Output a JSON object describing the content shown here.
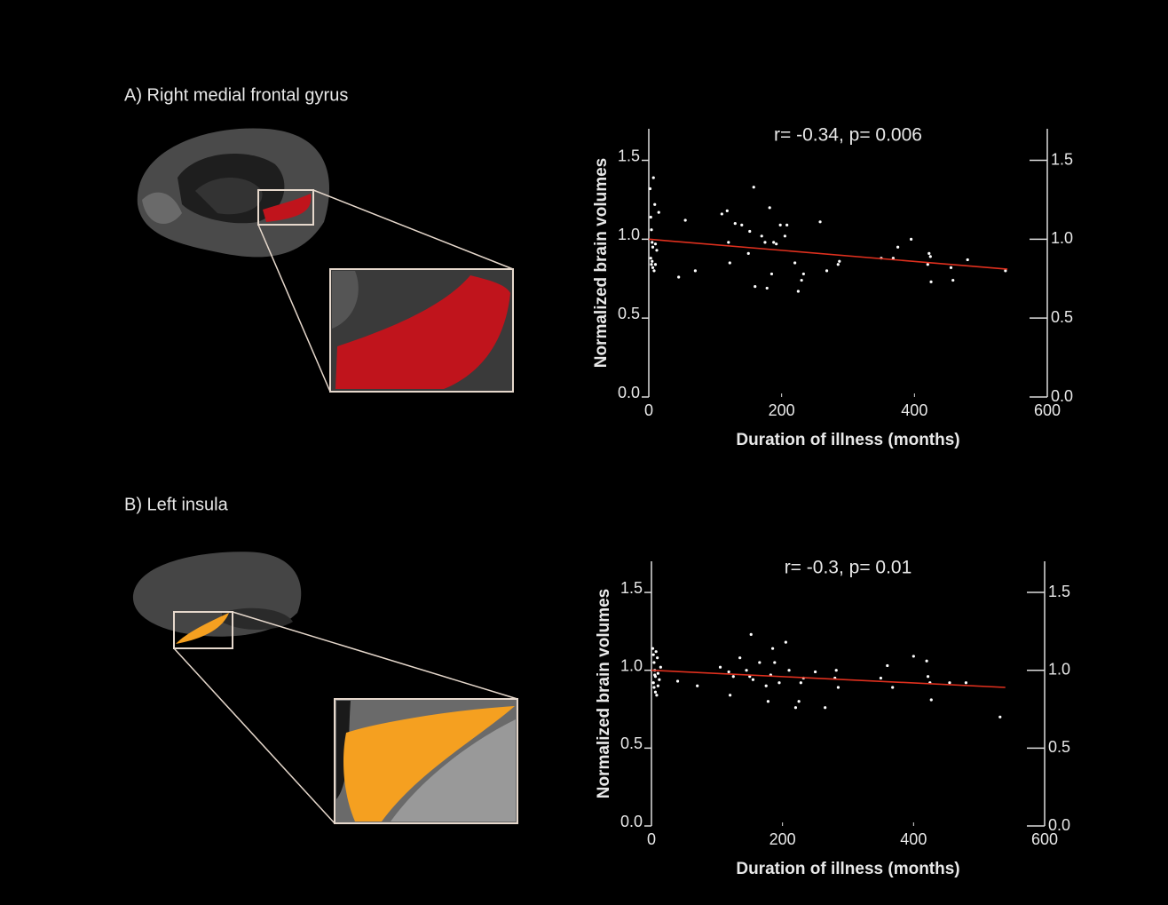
{
  "chart_data": [
    {
      "type": "scatter",
      "panel": "A) Right medial frontal gyrus",
      "title": "r= -0.34, p= 0.006",
      "x_label": "Duration of illness (months)",
      "y_label": "Normalized brain volumes",
      "xlim": [
        0,
        600
      ],
      "xticks": [
        0,
        200,
        400,
        600
      ],
      "ylim": [
        0,
        1.7
      ],
      "yticks": [
        {
          "value": 0,
          "label": "0.0"
        },
        0.5,
        {
          "value": 1,
          "label": "1.0"
        },
        1.5
      ],
      "series": [
        {
          "color": "#ffffff",
          "x": [
            2,
            3,
            4,
            5,
            6,
            3,
            4,
            6,
            8,
            7,
            9,
            10,
            12,
            15,
            5,
            10,
            45,
            55,
            70,
            110,
            118,
            120,
            122,
            130,
            140,
            150,
            152,
            158,
            160,
            170,
            175,
            178,
            182,
            185,
            188,
            192,
            198,
            205,
            208,
            220,
            225,
            230,
            233,
            258,
            268,
            285,
            287,
            350,
            368,
            375,
            395,
            420,
            422,
            424,
            425,
            455,
            458,
            480,
            537
          ],
          "values": [
            1.32,
            1.14,
            1.06,
            0.98,
            0.95,
            0.88,
            0.84,
            0.82,
            0.8,
            1.39,
            1.22,
            0.97,
            0.93,
            1.17,
            0.86,
            0.84,
            0.76,
            1.12,
            0.8,
            1.16,
            1.18,
            0.98,
            0.85,
            1.1,
            1.09,
            0.91,
            1.05,
            1.33,
            0.7,
            1.02,
            0.98,
            0.69,
            1.2,
            0.78,
            0.98,
            0.97,
            1.09,
            1.02,
            1.09,
            0.85,
            0.67,
            0.74,
            0.78,
            1.11,
            0.8,
            0.84,
            0.86,
            0.88,
            0.88,
            0.95,
            1.0,
            0.84,
            0.91,
            0.89,
            0.73,
            0.82,
            0.74,
            0.87,
            0.8
          ]
        }
      ],
      "fit": {
        "color": "#e0301e",
        "x": [
          0,
          540
        ],
        "y": [
          1.0,
          0.81
        ]
      }
    },
    {
      "type": "scatter",
      "panel": "B) Left insula",
      "title": "r= -0.3, p= 0.01",
      "x_label": "Duration of illness (months)",
      "y_label": "Normalized brain volumes",
      "xlim": [
        0,
        600
      ],
      "xticks": [
        0,
        200,
        400,
        600
      ],
      "ylim": [
        0,
        1.7
      ],
      "yticks": [
        {
          "value": 0,
          "label": "0.0"
        },
        0.5,
        {
          "value": 1,
          "label": "1.0"
        },
        1.5
      ],
      "series": [
        {
          "color": "#ffffff",
          "x": [
            2,
            3,
            4,
            5,
            6,
            3,
            4,
            6,
            8,
            7,
            9,
            10,
            12,
            14,
            5,
            10,
            40,
            70,
            105,
            118,
            120,
            125,
            135,
            145,
            150,
            152,
            155,
            165,
            175,
            178,
            182,
            185,
            188,
            195,
            205,
            210,
            220,
            225,
            228,
            232,
            250,
            265,
            280,
            282,
            285,
            350,
            360,
            368,
            400,
            420,
            422,
            425,
            427,
            455,
            480,
            532
          ],
          "values": [
            1.14,
            1.1,
            1.05,
            1.0,
            0.96,
            0.92,
            0.89,
            0.86,
            0.84,
            1.12,
            1.08,
            0.98,
            0.94,
            1.02,
            0.97,
            0.9,
            0.93,
            0.9,
            1.02,
            0.99,
            0.84,
            0.96,
            1.08,
            1.0,
            0.96,
            1.23,
            0.94,
            1.05,
            0.9,
            0.8,
            0.97,
            1.14,
            1.05,
            0.92,
            1.18,
            1.0,
            0.76,
            0.8,
            0.92,
            0.95,
            0.99,
            0.76,
            0.95,
            1.0,
            0.89,
            0.95,
            1.03,
            0.89,
            1.09,
            1.06,
            0.96,
            0.92,
            0.81,
            0.92,
            0.92,
            0.7
          ]
        }
      ],
      "fit": {
        "color": "#e0301e",
        "x": [
          0,
          540
        ],
        "y": [
          1.0,
          0.89
        ]
      }
    }
  ]
}
